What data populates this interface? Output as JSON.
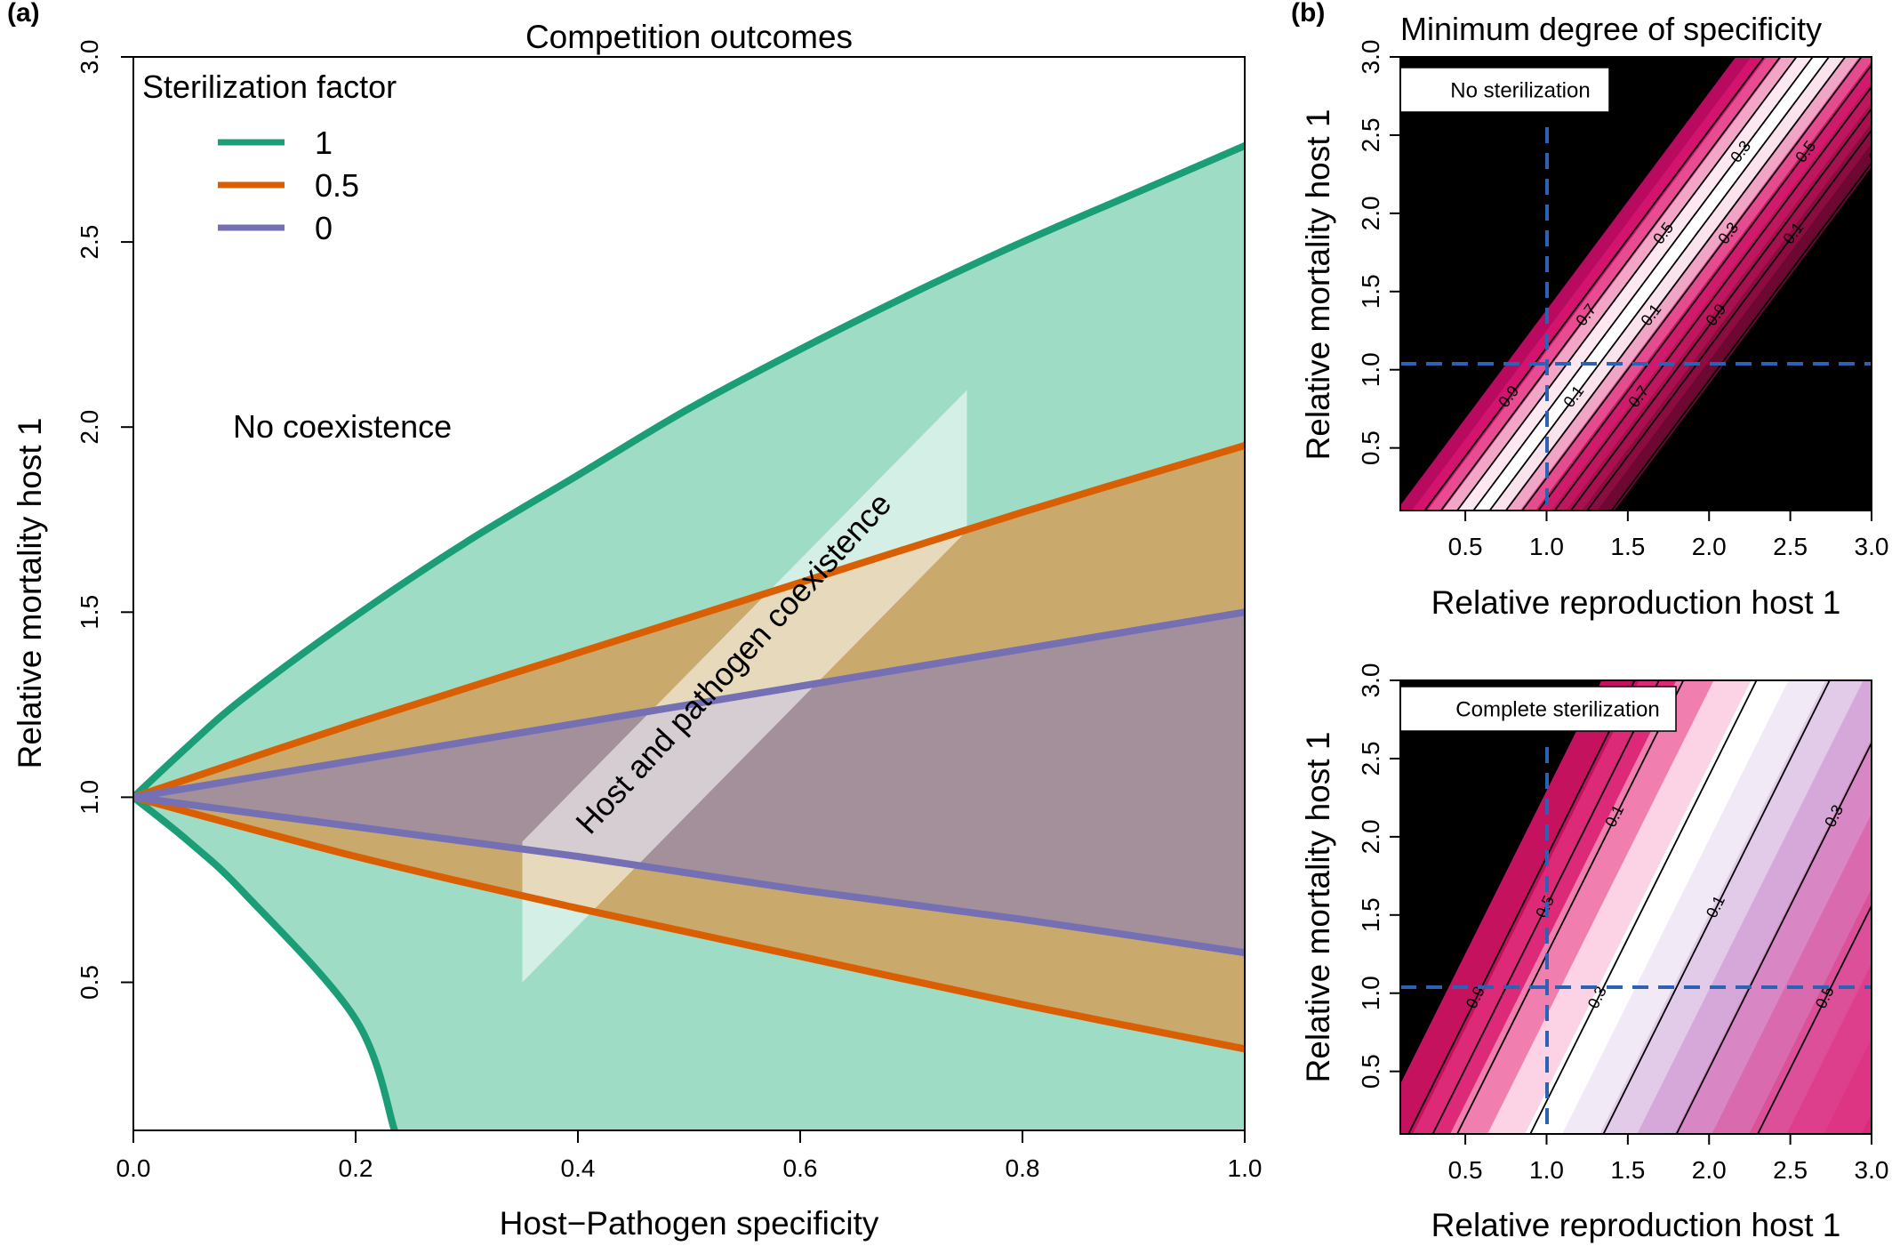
{
  "chart_data": [
    {
      "panel_label": "(a)",
      "type": "area",
      "title": "Competition outcomes",
      "xlabel": "Host−Pathogen specificity",
      "ylabel": "Relative mortality host 1",
      "xlim": [
        0.0,
        1.0
      ],
      "ylim": [
        0.1,
        3.0
      ],
      "x_ticks": [
        "0.0",
        "0.2",
        "0.4",
        "0.6",
        "0.8",
        "1.0"
      ],
      "y_ticks": [
        "0.5",
        "1.0",
        "1.5",
        "2.0",
        "2.5",
        "3.0"
      ],
      "legend_title": "Sterilization factor",
      "legend_position": "top-left",
      "series": [
        {
          "name": "1",
          "color": "#1b9e77",
          "fill": "#9fdcc6",
          "x": [
            0.0,
            0.05,
            0.1,
            0.2,
            0.3,
            0.4,
            0.5,
            0.6,
            0.7,
            0.8,
            0.9,
            1.0
          ],
          "upper": [
            1.0,
            1.14,
            1.27,
            1.49,
            1.69,
            1.87,
            2.05,
            2.21,
            2.36,
            2.5,
            2.63,
            2.76
          ],
          "lower": [
            1.0,
            0.88,
            0.74,
            0.4,
            0.1,
            0.1,
            0.1,
            0.1,
            0.1,
            0.1,
            0.1,
            0.1
          ],
          "lower_x_end": 0.235
        },
        {
          "name": "0.5",
          "color": "#d95f02",
          "fill": "#c9aa6c",
          "x": [
            0.0,
            0.2,
            0.4,
            0.6,
            0.8,
            1.0
          ],
          "upper": [
            1.0,
            1.2,
            1.39,
            1.58,
            1.77,
            1.95
          ],
          "lower": [
            1.0,
            0.84,
            0.7,
            0.57,
            0.44,
            0.32
          ]
        },
        {
          "name": "0",
          "color": "#7570b3",
          "fill": "#a4909b",
          "x": [
            0.0,
            0.2,
            0.4,
            0.6,
            0.8,
            1.0
          ],
          "upper": [
            1.0,
            1.1,
            1.2,
            1.3,
            1.4,
            1.5
          ],
          "lower": [
            1.0,
            0.92,
            0.84,
            0.75,
            0.67,
            0.58
          ]
        }
      ],
      "annotations": {
        "region_no_coexistence": "No coexistence",
        "region_coexistence": "Host and pathogen coexistence"
      }
    },
    {
      "panel_label": "(b)",
      "type": "heatmap",
      "title": "Minimum degree of specificity",
      "subplots": [
        {
          "label": "No sterilization",
          "xlabel": "Relative reproduction host 1",
          "ylabel": "Relative mortality host 1",
          "xlim": [
            0.1,
            3.0
          ],
          "ylim": [
            0.1,
            3.0
          ],
          "x_ticks": [
            "0.5",
            "1.0",
            "1.5",
            "2.0",
            "2.5",
            "3.0"
          ],
          "y_ticks": [
            "0.5",
            "1.0",
            "1.5",
            "2.0",
            "2.5",
            "3.0"
          ],
          "reference_lines": {
            "x": 1.0,
            "y": 1.0
          },
          "contour_labels": [
            "0.9",
            "0.7",
            "0.5",
            "0.3",
            "0.1",
            "0.1",
            "0.3",
            "0.5",
            "0.7",
            "0.9",
            "0.1",
            "0.3",
            "0.5",
            "0.7"
          ]
        },
        {
          "label": "Complete sterilization",
          "xlabel": "Relative reproduction host 1",
          "ylabel": "Relative mortality host 1",
          "xlim": [
            0.1,
            3.0
          ],
          "ylim": [
            0.1,
            3.0
          ],
          "x_ticks": [
            "0.5",
            "1.0",
            "1.5",
            "2.0",
            "2.5",
            "3.0"
          ],
          "y_ticks": [
            "0.5",
            "1.0",
            "1.5",
            "2.0",
            "2.5",
            "3.0"
          ],
          "reference_lines": {
            "x": 1.0,
            "y": 1.0
          },
          "contour_labels": [
            "0.9",
            "0.5",
            "0.1",
            "0.3",
            "0.1",
            "0.3",
            "0.5"
          ]
        }
      ]
    }
  ]
}
